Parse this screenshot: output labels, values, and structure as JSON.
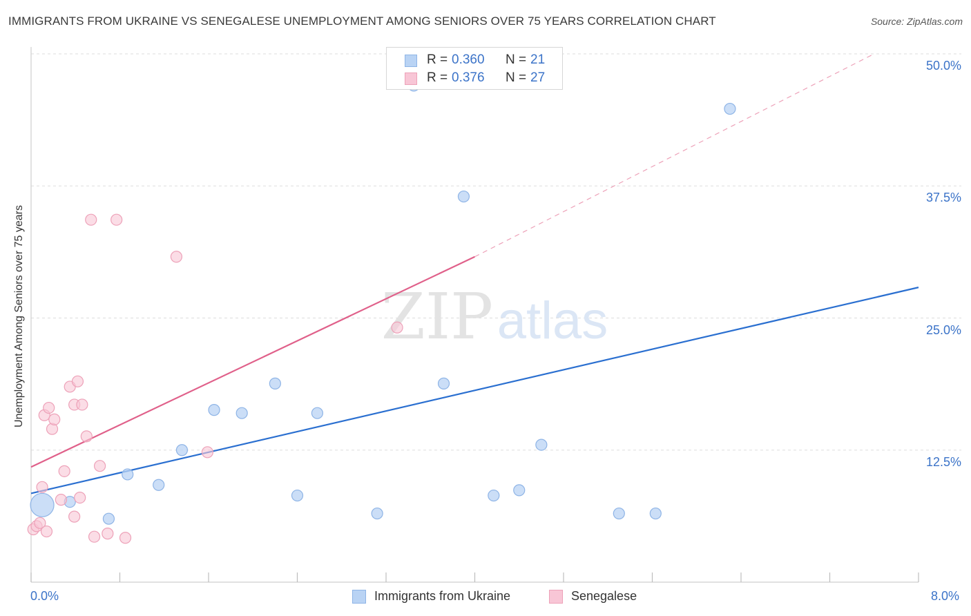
{
  "header": {
    "title": "IMMIGRANTS FROM UKRAINE VS SENEGALESE UNEMPLOYMENT AMONG SENIORS OVER 75 YEARS CORRELATION CHART",
    "source": "Source: ZipAtlas.com"
  },
  "watermark": {
    "zip": "ZIP",
    "atlas": "atlas"
  },
  "legend": {
    "r_label": "R =",
    "n_label": "N =",
    "series": [
      {
        "name": "Immigrants from Ukraine",
        "r": "0.360",
        "n": "21"
      },
      {
        "name": "Senegalese",
        "r": "0.376",
        "n": "27"
      }
    ]
  },
  "colors": {
    "ukraine_fill": "#b9d3f4",
    "ukraine_stroke": "#8eb4e6",
    "ukraine_line": "#2a6fd0",
    "senegal_fill": "#f8c6d6",
    "senegal_stroke": "#eda1b8",
    "senegal_line": "#e0608a",
    "axis_text": "#3b73c8",
    "grid": "#dddddd"
  },
  "chart_data": {
    "type": "scatter",
    "title": "IMMIGRANTS FROM UKRAINE VS SENEGALESE UNEMPLOYMENT AMONG SENIORS OVER 75 YEARS CORRELATION CHART",
    "xlabel": "",
    "ylabel": "Unemployment Among Seniors over 75 years",
    "xlim": [
      0,
      8
    ],
    "ylim": [
      0,
      50
    ],
    "x_tick_labels": [
      "0.0%",
      "8.0%"
    ],
    "y_ticks": [
      12.5,
      25.0,
      37.5,
      50.0
    ],
    "y_tick_labels": [
      "12.5%",
      "25.0%",
      "37.5%",
      "50.0%"
    ],
    "grid": true,
    "legend_placement": "top-center",
    "series": [
      {
        "name": "Immigrants from Ukraine",
        "points": [
          {
            "x": 0.1,
            "y": 7.3,
            "size": "large"
          },
          {
            "x": 0.35,
            "y": 7.6
          },
          {
            "x": 0.7,
            "y": 6.0
          },
          {
            "x": 0.87,
            "y": 10.2
          },
          {
            "x": 1.15,
            "y": 9.2
          },
          {
            "x": 1.36,
            "y": 12.5
          },
          {
            "x": 1.65,
            "y": 16.3
          },
          {
            "x": 1.9,
            "y": 16.0
          },
          {
            "x": 2.2,
            "y": 18.8
          },
          {
            "x": 2.4,
            "y": 8.2
          },
          {
            "x": 2.58,
            "y": 16.0
          },
          {
            "x": 3.12,
            "y": 6.5
          },
          {
            "x": 3.45,
            "y": 47.0
          },
          {
            "x": 3.72,
            "y": 18.8
          },
          {
            "x": 3.9,
            "y": 36.5
          },
          {
            "x": 4.17,
            "y": 8.2
          },
          {
            "x": 4.4,
            "y": 8.7
          },
          {
            "x": 4.6,
            "y": 13.0
          },
          {
            "x": 5.3,
            "y": 6.5
          },
          {
            "x": 5.63,
            "y": 6.5
          },
          {
            "x": 6.3,
            "y": 44.8
          }
        ],
        "trend": {
          "x0": 0,
          "y0": 8.4,
          "x1": 8,
          "y1": 27.9
        }
      },
      {
        "name": "Senegalese",
        "points": [
          {
            "x": 0.02,
            "y": 5.0
          },
          {
            "x": 0.05,
            "y": 5.3
          },
          {
            "x": 0.08,
            "y": 5.6
          },
          {
            "x": 0.1,
            "y": 9.0
          },
          {
            "x": 0.14,
            "y": 4.8
          },
          {
            "x": 0.12,
            "y": 15.8
          },
          {
            "x": 0.16,
            "y": 16.5
          },
          {
            "x": 0.19,
            "y": 14.5
          },
          {
            "x": 0.21,
            "y": 15.4
          },
          {
            "x": 0.27,
            "y": 7.8
          },
          {
            "x": 0.3,
            "y": 10.5
          },
          {
            "x": 0.35,
            "y": 18.5
          },
          {
            "x": 0.39,
            "y": 16.8
          },
          {
            "x": 0.42,
            "y": 19.0
          },
          {
            "x": 0.44,
            "y": 8.0
          },
          {
            "x": 0.46,
            "y": 16.8
          },
          {
            "x": 0.5,
            "y": 13.8
          },
          {
            "x": 0.39,
            "y": 6.2
          },
          {
            "x": 0.54,
            "y": 34.3
          },
          {
            "x": 0.57,
            "y": 4.3
          },
          {
            "x": 0.62,
            "y": 11.0
          },
          {
            "x": 0.69,
            "y": 4.6
          },
          {
            "x": 0.77,
            "y": 34.3
          },
          {
            "x": 0.85,
            "y": 4.2
          },
          {
            "x": 1.31,
            "y": 30.8
          },
          {
            "x": 1.59,
            "y": 12.3
          },
          {
            "x": 3.3,
            "y": 24.1
          }
        ],
        "trend": {
          "x0": 0,
          "y0": 10.9,
          "x1": 4.0,
          "y1": 30.8
        },
        "trend_extension": {
          "x0": 4.0,
          "y0": 30.8,
          "x1": 7.6,
          "y1": 50.0
        }
      }
    ]
  }
}
